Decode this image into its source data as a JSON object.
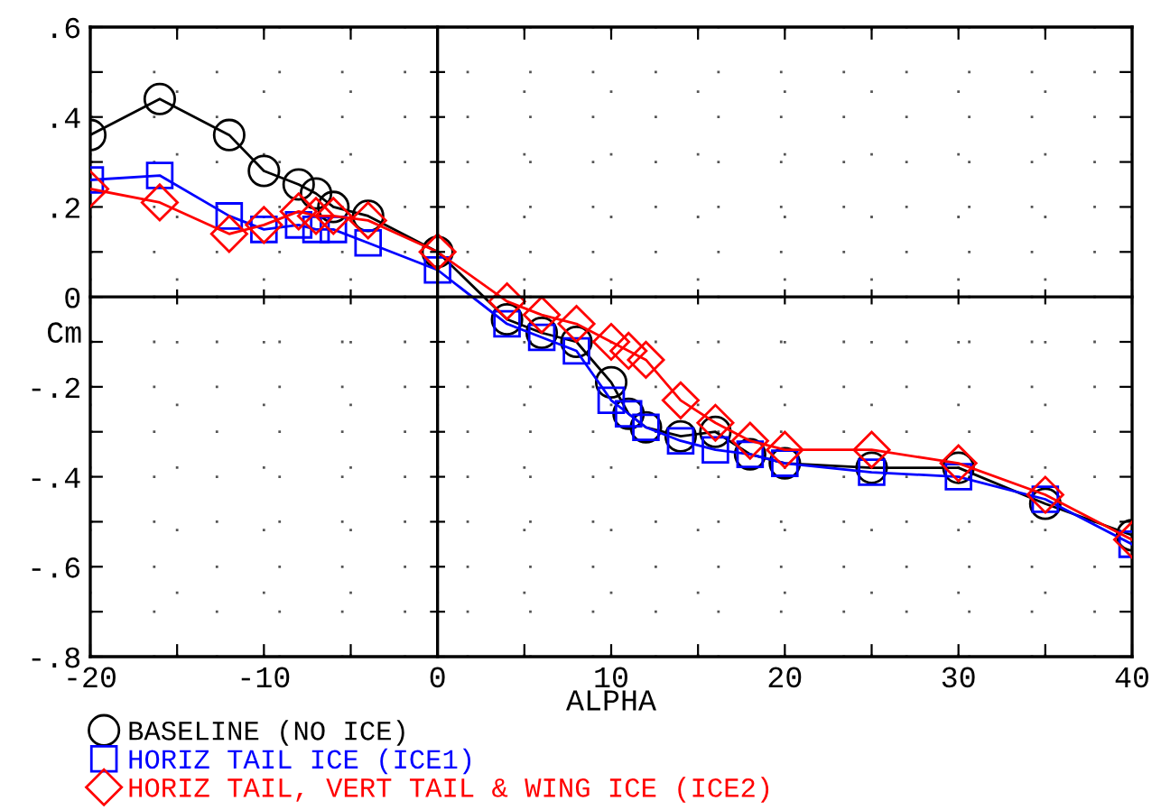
{
  "chart_data": {
    "type": "line",
    "xlabel": "ALPHA",
    "ylabel": "Cm",
    "x": [
      -20,
      -16,
      -12,
      -10,
      -8,
      -7,
      -6,
      -4,
      0,
      4,
      6,
      8,
      10,
      11,
      12,
      14,
      16,
      18,
      20,
      25,
      30,
      35,
      40
    ],
    "series": [
      {
        "name": "BASELINE (NO ICE)",
        "color": "#000000",
        "marker": "circle",
        "values": [
          0.36,
          0.44,
          0.36,
          0.28,
          0.25,
          0.23,
          0.2,
          0.18,
          0.1,
          -0.05,
          -0.08,
          -0.1,
          -0.19,
          -0.26,
          -0.29,
          -0.31,
          -0.3,
          -0.35,
          -0.37,
          -0.38,
          -0.38,
          -0.46,
          -0.53
        ]
      },
      {
        "name": "HORIZ TAIL ICE (ICE1)",
        "color": "#0000ff",
        "marker": "square",
        "values": [
          0.26,
          0.27,
          0.18,
          0.15,
          0.16,
          0.15,
          0.15,
          0.12,
          0.06,
          -0.06,
          -0.09,
          -0.12,
          -0.23,
          -0.26,
          -0.29,
          -0.32,
          -0.34,
          -0.35,
          -0.37,
          -0.39,
          -0.4,
          -0.45,
          -0.55
        ]
      },
      {
        "name": "HORIZ TAIL, VERT TAIL & WING ICE (ICE2)",
        "color": "#ff0000",
        "marker": "diamond",
        "values": [
          0.24,
          0.21,
          0.14,
          0.16,
          0.19,
          0.18,
          0.18,
          0.17,
          0.1,
          -0.01,
          -0.04,
          -0.06,
          -0.1,
          -0.12,
          -0.14,
          -0.23,
          -0.28,
          -0.32,
          -0.34,
          -0.34,
          -0.37,
          -0.44,
          -0.54
        ]
      }
    ],
    "xlim": [
      -20,
      40
    ],
    "xticks": [
      {
        "value": -20,
        "label": "-20"
      },
      {
        "value": -15,
        "label": null
      },
      {
        "value": -10,
        "label": "-10"
      },
      {
        "value": -5,
        "label": null
      },
      0,
      {
        "value": 5,
        "label": null
      },
      10,
      {
        "value": 15,
        "label": null
      },
      20,
      {
        "value": 25,
        "label": null
      },
      30,
      {
        "value": 35,
        "label": null
      },
      40
    ],
    "ylim": [
      -0.8,
      0.6
    ],
    "yticks": [
      {
        "value": -0.8,
        "label": "-.8"
      },
      {
        "value": -0.7,
        "label": null
      },
      {
        "value": -0.6,
        "label": "-.6"
      },
      {
        "value": -0.5,
        "label": null
      },
      {
        "value": -0.4,
        "label": "-.4"
      },
      {
        "value": -0.3,
        "label": null
      },
      {
        "value": -0.2,
        "label": "-.2"
      },
      {
        "value": -0.1,
        "label": null
      },
      {
        "value": 0,
        "label": "0"
      },
      {
        "value": 0.1,
        "label": null
      },
      {
        "value": 0.2,
        "label": ".2"
      },
      {
        "value": 0.3,
        "label": null
      },
      {
        "value": 0.4,
        "label": ".4"
      },
      {
        "value": 0.5,
        "label": null
      },
      {
        "value": 0.6,
        "label": ".6"
      }
    ],
    "grid": true,
    "legend": "bottom",
    "line_style": "solid"
  }
}
